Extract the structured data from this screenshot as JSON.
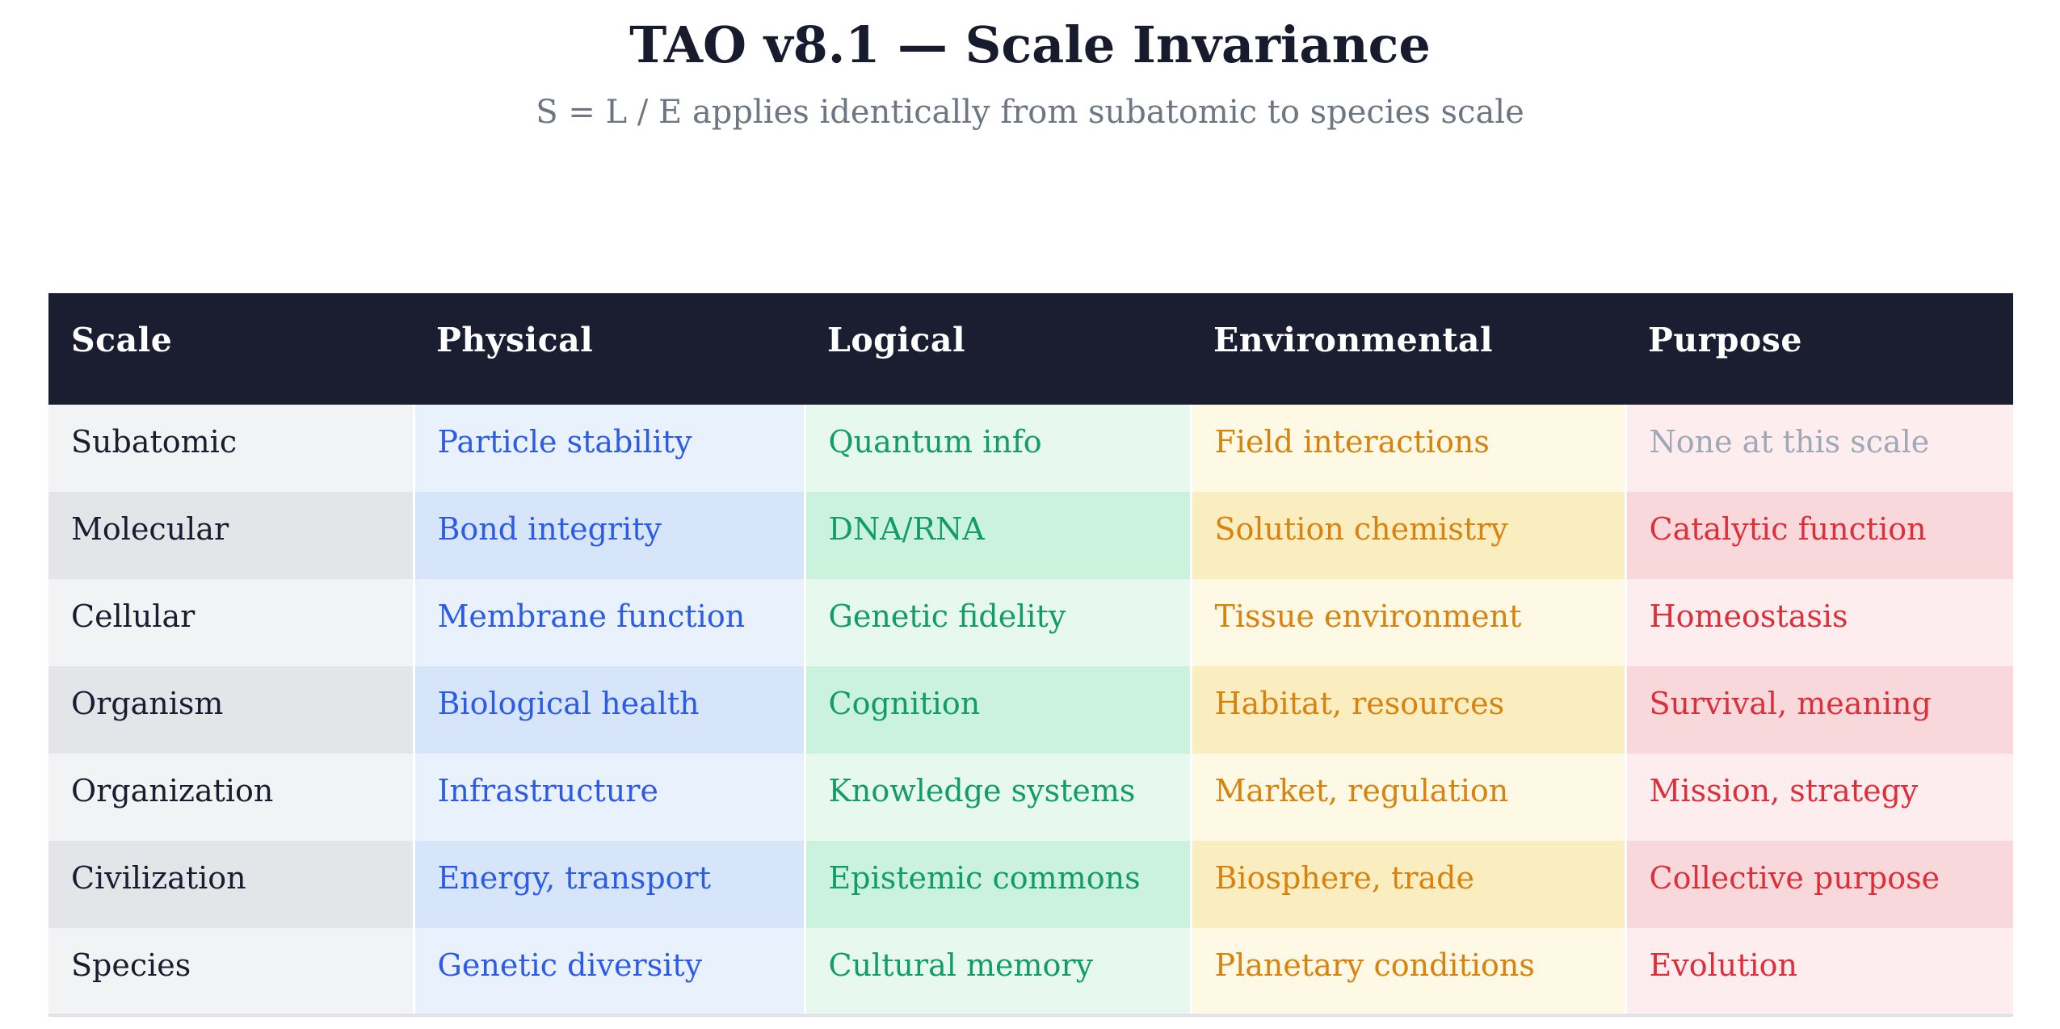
{
  "header": {
    "title": "TAO v8.1 — Scale Invariance",
    "subtitle": "S = L / E applies identically from subatomic to species scale"
  },
  "table": {
    "columns": [
      "Scale",
      "Physical",
      "Logical",
      "Environmental",
      "Purpose"
    ],
    "rows": [
      {
        "scale": "Subatomic",
        "physical": "Particle stability",
        "logical": "Quantum info",
        "environmental": "Field interactions",
        "purpose": "None at this scale",
        "muted": [
          "purpose"
        ]
      },
      {
        "scale": "Molecular",
        "physical": "Bond integrity",
        "logical": "DNA/RNA",
        "environmental": "Solution chemistry",
        "purpose": "Catalytic function"
      },
      {
        "scale": "Cellular",
        "physical": "Membrane function",
        "logical": "Genetic fidelity",
        "environmental": "Tissue environment",
        "purpose": "Homeostasis"
      },
      {
        "scale": "Organism",
        "physical": "Biological health",
        "logical": "Cognition",
        "environmental": "Habitat, resources",
        "purpose": "Survival, meaning"
      },
      {
        "scale": "Organization",
        "physical": "Infrastructure",
        "logical": "Knowledge systems",
        "environmental": "Market, regulation",
        "purpose": "Mission, strategy"
      },
      {
        "scale": "Civilization",
        "physical": "Energy, transport",
        "logical": "Epistemic commons",
        "environmental": "Biosphere, trade",
        "purpose": "Collective purpose"
      },
      {
        "scale": "Species",
        "physical": "Genetic diversity",
        "logical": "Cultural memory",
        "environmental": "Planetary conditions",
        "purpose": "Evolution"
      }
    ],
    "colors": {
      "header_bg": "#1b1d31",
      "header_text": "#ffffff",
      "physical_text": "#2c5ce6",
      "logical_text": "#129c6a",
      "environmental_text": "#d9820e",
      "purpose_text": "#dd2f3a",
      "muted_text": "#9ea8b6"
    }
  }
}
